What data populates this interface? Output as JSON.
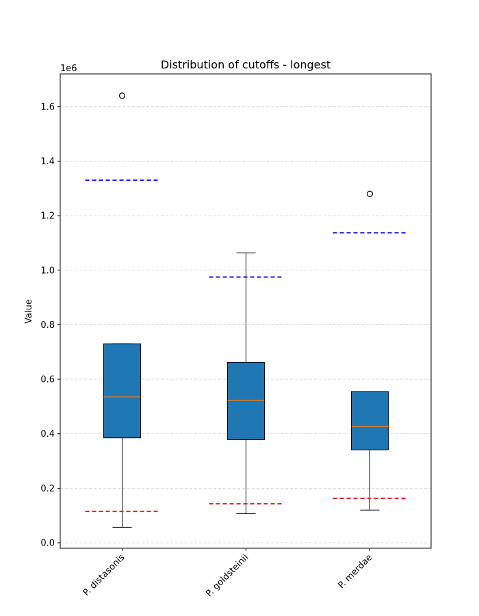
{
  "chart_data": {
    "type": "box",
    "title": "Distribution of cutoffs - longest",
    "ylabel": "Value",
    "y_offset_label": "1e6",
    "ylim": [
      -0.02,
      1.72
    ],
    "y_ticks": [
      0.0,
      0.2,
      0.4,
      0.6,
      0.8,
      1.0,
      1.2,
      1.4,
      1.6
    ],
    "y_tick_labels": [
      "0.0",
      "0.2",
      "0.4",
      "0.6",
      "0.8",
      "1.0",
      "1.2",
      "1.4",
      "1.6"
    ],
    "grid": "y-dashed",
    "box_color": "#1f77b4",
    "median_color": "#ff7f0e",
    "upper_line_color": "#0000ff",
    "lower_line_color": "#ff0000",
    "categories": [
      "P. distasonis",
      "P. goldsteinii",
      "P. merdae"
    ],
    "boxes": [
      {
        "name": "P. distasonis",
        "whisker_low": 0.057,
        "q1": 0.385,
        "median": 0.535,
        "q3": 0.73,
        "whisker_high": 0.73,
        "outliers": [
          1.64
        ],
        "upper_line": 1.33,
        "lower_line": 0.115
      },
      {
        "name": "P. goldsteinii",
        "whisker_low": 0.107,
        "q1": 0.378,
        "median": 0.522,
        "q3": 0.662,
        "whisker_high": 1.063,
        "outliers": [],
        "upper_line": 0.975,
        "lower_line": 0.143
      },
      {
        "name": "P. merdae",
        "whisker_low": 0.12,
        "q1": 0.341,
        "median": 0.426,
        "q3": 0.555,
        "whisker_high": 0.555,
        "outliers": [
          1.28
        ],
        "upper_line": 1.137,
        "lower_line": 0.163
      }
    ]
  }
}
